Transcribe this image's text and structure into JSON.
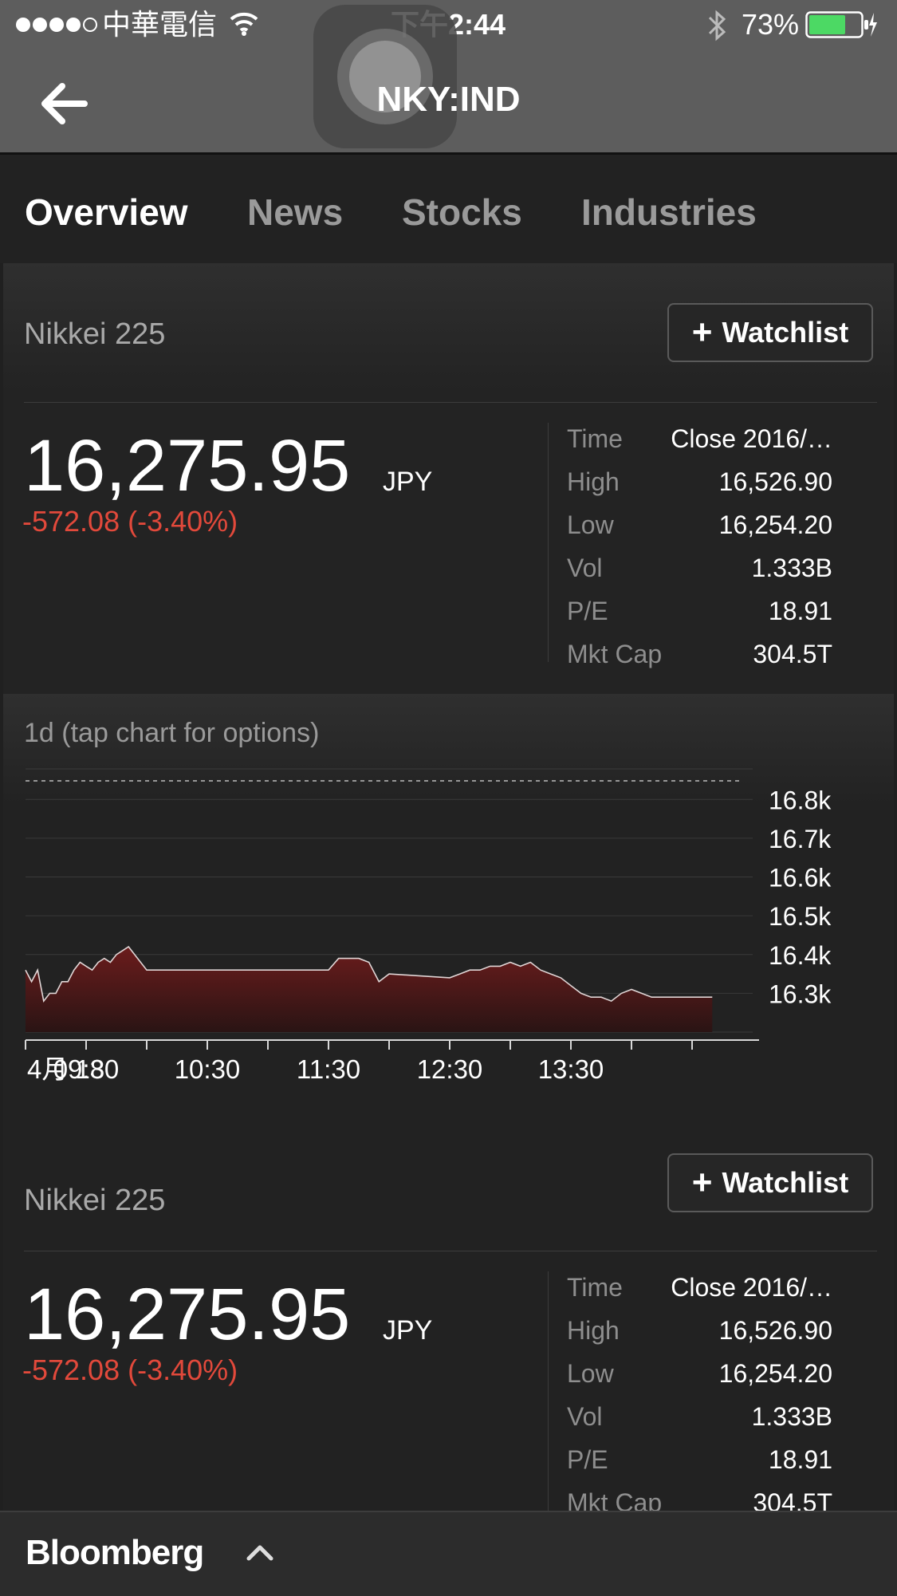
{
  "status_bar": {
    "carrier": "中華電信",
    "time": "下午2:44",
    "battery_percent": "73%",
    "battery_level": 0.73,
    "battery_color": "#4cd964"
  },
  "nav": {
    "title": "NKY:IND"
  },
  "tabs": [
    {
      "label": "Overview",
      "active": true
    },
    {
      "label": "News",
      "active": false
    },
    {
      "label": "Stocks",
      "active": false
    },
    {
      "label": "Industries",
      "active": false
    }
  ],
  "quote_cards": [
    {
      "name": "Nikkei 225",
      "watchlist_label": "Watchlist",
      "price": "16,275.95",
      "currency": "JPY",
      "change": "-572.08 (-3.40%)",
      "stats": [
        {
          "label": "Time",
          "value": "Close 2016/…"
        },
        {
          "label": "High",
          "value": "16,526.90"
        },
        {
          "label": "Low",
          "value": "16,254.20"
        },
        {
          "label": "Vol",
          "value": "1.333B"
        },
        {
          "label": "P/E",
          "value": "18.91"
        },
        {
          "label": "Mkt Cap",
          "value": "304.5T"
        }
      ]
    },
    {
      "name": "Nikkei 225",
      "watchlist_label": "Watchlist",
      "price": "16,275.95",
      "currency": "JPY",
      "change": "-572.08 (-3.40%)",
      "stats": [
        {
          "label": "Time",
          "value": "Close 2016/…"
        },
        {
          "label": "High",
          "value": "16,526.90"
        },
        {
          "label": "Low",
          "value": "16,254.20"
        },
        {
          "label": "Vol",
          "value": "1.333B"
        },
        {
          "label": "P/E",
          "value": "18.91"
        },
        {
          "label": "Mkt Cap",
          "value": "304.5T"
        }
      ]
    }
  ],
  "chart": {
    "caption": "1d  (tap chart for options)"
  },
  "chart_data": {
    "type": "area",
    "title": "",
    "xlabel": "",
    "ylabel": "",
    "ylim": [
      16.2,
      16.85
    ],
    "y_ticks": [
      "16.8k",
      "16.7k",
      "16.6k",
      "16.5k",
      "16.4k",
      "16.3k"
    ],
    "y_tick_values": [
      16.8,
      16.7,
      16.6,
      16.5,
      16.4,
      16.3
    ],
    "x_ticks": [
      "4月 18",
      "09:30",
      "10:30",
      "11:30",
      "12:30",
      "13:30"
    ],
    "prev_close": 16.848,
    "series": [
      {
        "x": [
          "09:00",
          "09:03",
          "09:06",
          "09:09",
          "09:12",
          "09:15",
          "09:18",
          "09:21",
          "09:24",
          "09:27",
          "09:30",
          "09:33",
          "09:36",
          "09:39",
          "09:42",
          "09:45",
          "09:48",
          "09:51",
          "09:54",
          "09:57",
          "10:00",
          "10:15",
          "10:30",
          "10:45",
          "11:00",
          "11:15",
          "11:30",
          "11:35",
          "11:40",
          "11:45",
          "11:50",
          "11:55",
          "12:00",
          "12:30",
          "12:35",
          "12:40",
          "12:45",
          "12:50",
          "12:55",
          "13:00",
          "13:05",
          "13:10",
          "13:15",
          "13:20",
          "13:25",
          "13:30",
          "13:35",
          "13:40",
          "13:45",
          "13:50",
          "13:55",
          "14:00",
          "14:05",
          "14:10",
          "14:15",
          "14:20",
          "14:25",
          "14:30",
          "14:35",
          "14:40"
        ],
        "values": [
          16.36,
          16.33,
          16.36,
          16.28,
          16.3,
          16.3,
          16.33,
          16.33,
          16.36,
          16.38,
          16.37,
          16.36,
          16.38,
          16.39,
          16.38,
          16.4,
          16.41,
          16.42,
          16.4,
          16.38,
          16.36,
          16.36,
          16.36,
          16.36,
          16.36,
          16.36,
          16.36,
          16.39,
          16.39,
          16.39,
          16.38,
          16.33,
          16.35,
          16.34,
          16.35,
          16.36,
          16.36,
          16.37,
          16.37,
          16.38,
          16.37,
          16.38,
          16.36,
          16.35,
          16.34,
          16.32,
          16.3,
          16.29,
          16.29,
          16.28,
          16.3,
          16.31,
          16.3,
          16.29,
          16.29,
          16.29,
          16.29,
          16.29,
          16.29,
          16.29
        ]
      }
    ],
    "line_color": "#e0d6d6",
    "fill_color": "#6b1c1c"
  },
  "bottom_bar": {
    "brand": "Bloomberg"
  }
}
